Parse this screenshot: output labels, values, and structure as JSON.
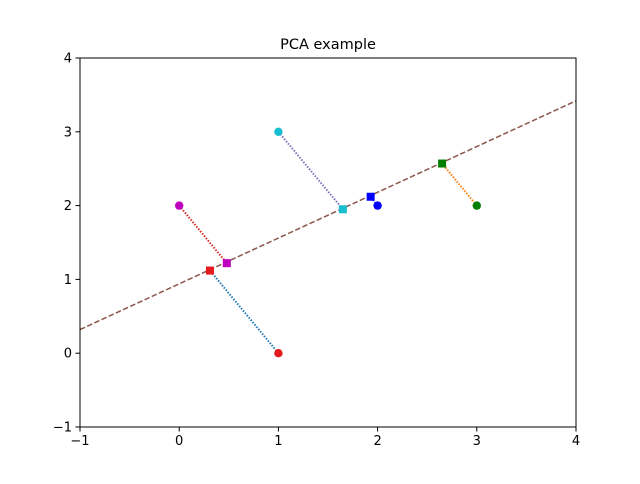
{
  "chart_data": {
    "type": "scatter",
    "title": "PCA example",
    "xlabel": "",
    "ylabel": "",
    "xlim": [
      -1,
      4
    ],
    "ylim": [
      -1,
      4
    ],
    "xticks": [
      -1,
      0,
      1,
      2,
      3,
      4
    ],
    "yticks": [
      -1,
      0,
      1,
      2,
      3,
      4
    ],
    "grid": false,
    "principal_line": {
      "points": [
        [
          -1,
          0.32
        ],
        [
          4,
          3.42
        ]
      ],
      "color": "#8c564b",
      "style": "dashed"
    },
    "points": [
      {
        "x": 1,
        "y": 0,
        "proj_x": 0.31,
        "proj_y": 1.12,
        "color": "#e41a1c",
        "line_color": "#1f77b4"
      },
      {
        "x": 0,
        "y": 2,
        "proj_x": 0.48,
        "proj_y": 1.22,
        "color": "#bf00bf",
        "line_color": "#d62728"
      },
      {
        "x": 1,
        "y": 3,
        "proj_x": 1.65,
        "proj_y": 1.95,
        "color": "#17becf",
        "line_color": "#7f73bf"
      },
      {
        "x": 2,
        "y": 2,
        "proj_x": 1.93,
        "proj_y": 2.12,
        "color": "#0000ff",
        "line_color": "#0000ff"
      },
      {
        "x": 3,
        "y": 2,
        "proj_x": 2.65,
        "proj_y": 2.57,
        "color": "#008000",
        "line_color": "#ff7f0e"
      }
    ]
  }
}
